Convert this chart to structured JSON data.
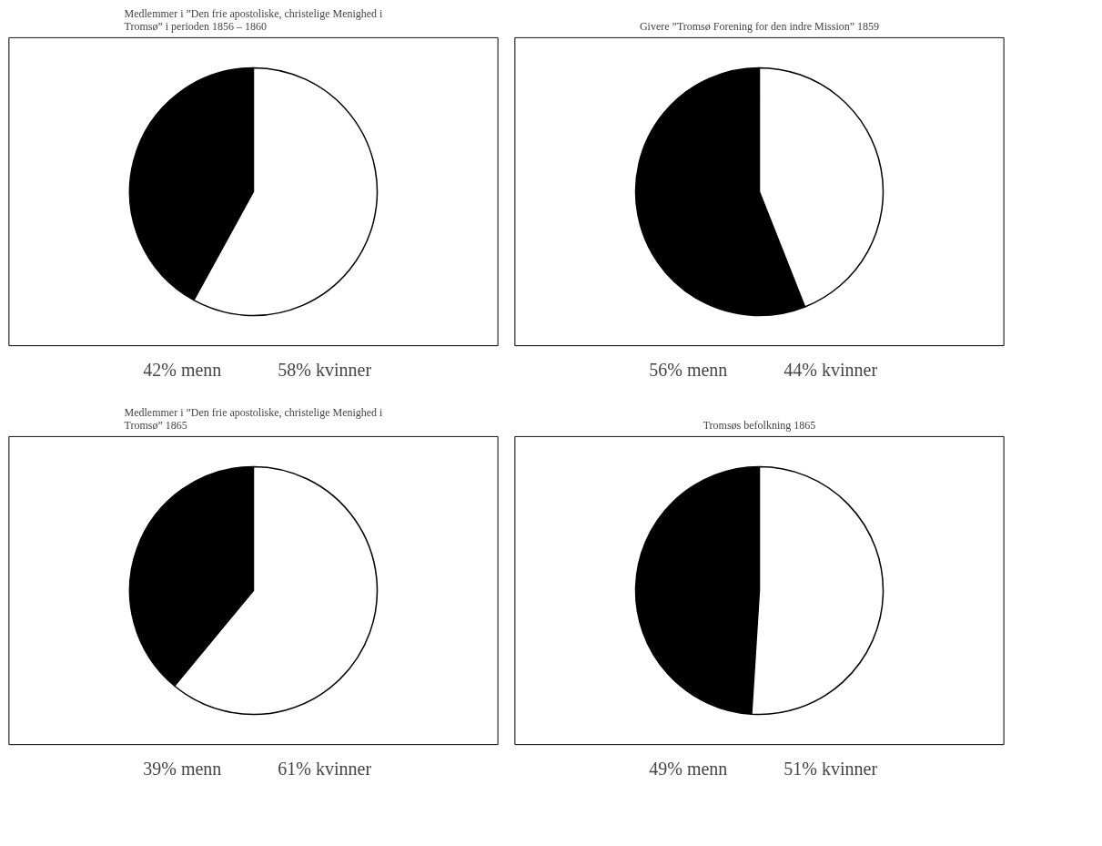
{
  "chart_data": [
    {
      "type": "pie",
      "title": "Medlemmer i ”Den frie apostoliske, christelige Menighed i Tromsø” i perioden 1856 – 1860",
      "categories": [
        null,
        null
      ],
      "values": [
        42,
        58
      ],
      "colors": [
        "#000000",
        "#ffffff"
      ],
      "annotations": [
        "42% menn",
        "58% kvinner"
      ]
    },
    {
      "type": "pie",
      "title": "Givere ”Tromsø Forening for den indre Mission” 1859",
      "categories": [
        null,
        null
      ],
      "values": [
        56,
        44
      ],
      "colors": [
        "#000000",
        "#ffffff"
      ],
      "annotations": [
        "56% menn",
        "44% kvinner"
      ]
    },
    {
      "type": "pie",
      "title": "Medlemmer i ”Den frie apostoliske, christelige Menighed i Tromsø” 1865",
      "categories": [
        null,
        null
      ],
      "values": [
        39,
        61
      ],
      "colors": [
        "#000000",
        "#ffffff"
      ],
      "annotations": [
        "39% menn",
        "61% kvinner"
      ]
    },
    {
      "type": "pie",
      "title": "Tromsøs befolkning 1865",
      "categories": [
        null,
        null
      ],
      "values": [
        49,
        51
      ],
      "colors": [
        "#000000",
        "#ffffff"
      ],
      "annotations": [
        "49% menn",
        "51% kvinner"
      ]
    }
  ]
}
